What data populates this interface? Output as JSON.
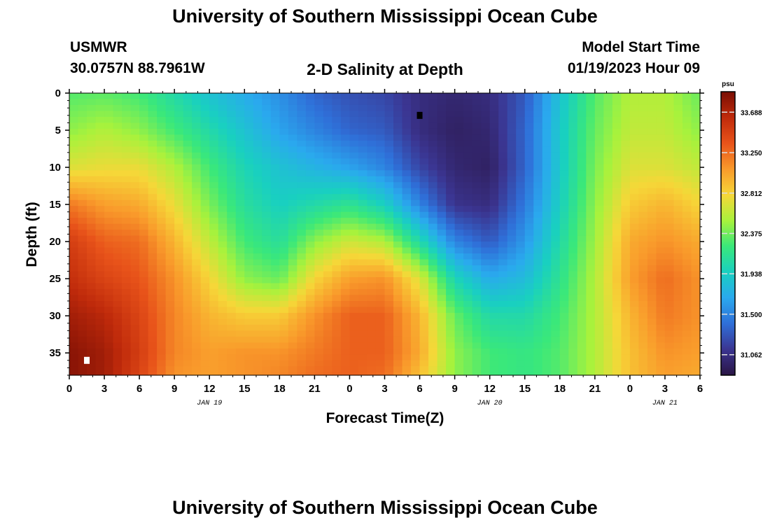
{
  "header": {
    "title_top": "University of Southern Mississippi Ocean Cube",
    "title_bottom": "University of Southern Mississippi Ocean Cube",
    "station": "USMWR",
    "coords": "30.0757N  88.7961W",
    "subtitle": "2-D Salinity at Depth",
    "model_start_label": "Model Start Time",
    "model_start_value": "01/19/2023 Hour 09"
  },
  "chart_data": {
    "type": "heatmap",
    "title": "2-D Salinity at Depth",
    "xlabel": "Forecast Time(Z)",
    "ylabel": "Depth (ft)",
    "x_hours_range": [
      0,
      54
    ],
    "x_tick_labels": [
      "0",
      "3",
      "6",
      "9",
      "12",
      "15",
      "18",
      "21",
      "0",
      "3",
      "6",
      "9",
      "12",
      "15",
      "18",
      "21",
      "0",
      "3",
      "6"
    ],
    "date_labels": [
      {
        "label": "JAN 19",
        "hour": 12
      },
      {
        "label": "JAN 20",
        "hour": 36
      },
      {
        "label": "JAN 21",
        "hour": 51
      }
    ],
    "ylim": [
      38,
      0
    ],
    "y_ticks": [
      0,
      5,
      10,
      15,
      20,
      25,
      30,
      35
    ],
    "colorbar": {
      "unit": "psu",
      "range": [
        30.84,
        33.91
      ],
      "tick_labels": [
        "33.688",
        "33.250",
        "32.812",
        "32.375",
        "31.938",
        "31.500",
        "31.062"
      ],
      "colors": [
        "#2a1545",
        "#3b3591",
        "#2f6fd8",
        "#2aa9ee",
        "#19d0c0",
        "#3ae87a",
        "#a8f23c",
        "#f6d738",
        "#f99a2b",
        "#e8531a",
        "#bf2a0b",
        "#7a0e04"
      ]
    },
    "depths": [
      0,
      5,
      10,
      15,
      20,
      25,
      30,
      35,
      38
    ],
    "times_hours": [
      0,
      3,
      6,
      9,
      12,
      15,
      18,
      21,
      24,
      27,
      30,
      33,
      36,
      39,
      42,
      45,
      48,
      51,
      54
    ],
    "values": [
      [
        32.3,
        32.32,
        32.25,
        32.05,
        31.85,
        31.7,
        31.55,
        31.35,
        31.25,
        31.2,
        31.05,
        31.0,
        31.05,
        31.3,
        31.85,
        32.3,
        32.55,
        32.55,
        32.35
      ],
      [
        32.45,
        32.55,
        32.45,
        32.25,
        32.05,
        31.85,
        31.65,
        31.5,
        31.35,
        31.3,
        31.05,
        30.95,
        31.0,
        31.35,
        31.9,
        32.35,
        32.6,
        32.6,
        32.45
      ],
      [
        32.7,
        32.75,
        32.75,
        32.55,
        32.25,
        32.0,
        31.85,
        31.75,
        31.65,
        31.5,
        31.2,
        31.0,
        30.95,
        31.35,
        31.9,
        32.4,
        32.7,
        32.7,
        32.6
      ],
      [
        33.2,
        33.05,
        33.0,
        32.75,
        32.4,
        32.1,
        31.95,
        32.05,
        32.15,
        31.95,
        31.5,
        31.1,
        31.05,
        31.45,
        31.95,
        32.45,
        32.85,
        32.95,
        32.8
      ],
      [
        33.5,
        33.3,
        33.25,
        32.95,
        32.6,
        32.25,
        32.1,
        32.45,
        32.65,
        32.55,
        32.05,
        31.5,
        31.3,
        31.6,
        32.05,
        32.5,
        33.0,
        33.1,
        33.0
      ],
      [
        33.6,
        33.45,
        33.35,
        33.1,
        32.8,
        32.45,
        32.35,
        32.8,
        33.05,
        33.1,
        32.7,
        32.0,
        31.7,
        31.8,
        32.15,
        32.55,
        33.05,
        33.25,
        33.1
      ],
      [
        33.75,
        33.65,
        33.45,
        33.15,
        32.95,
        32.85,
        32.85,
        33.1,
        33.3,
        33.3,
        32.95,
        32.35,
        32.05,
        32.05,
        32.25,
        32.55,
        32.95,
        33.2,
        33.1
      ],
      [
        33.85,
        33.75,
        33.5,
        33.15,
        33.05,
        33.1,
        33.1,
        33.2,
        33.3,
        33.3,
        33.0,
        32.45,
        32.25,
        32.2,
        32.3,
        32.55,
        32.9,
        33.1,
        33.05
      ],
      [
        33.85,
        33.75,
        33.45,
        33.1,
        33.05,
        33.1,
        33.15,
        33.25,
        33.3,
        33.25,
        32.9,
        32.45,
        32.25,
        32.2,
        32.3,
        32.55,
        32.9,
        33.05,
        33.0
      ]
    ],
    "min_marker": {
      "hour": 30,
      "depth": 3
    },
    "max_marker": {
      "hour": 1.5,
      "depth": 36
    }
  }
}
